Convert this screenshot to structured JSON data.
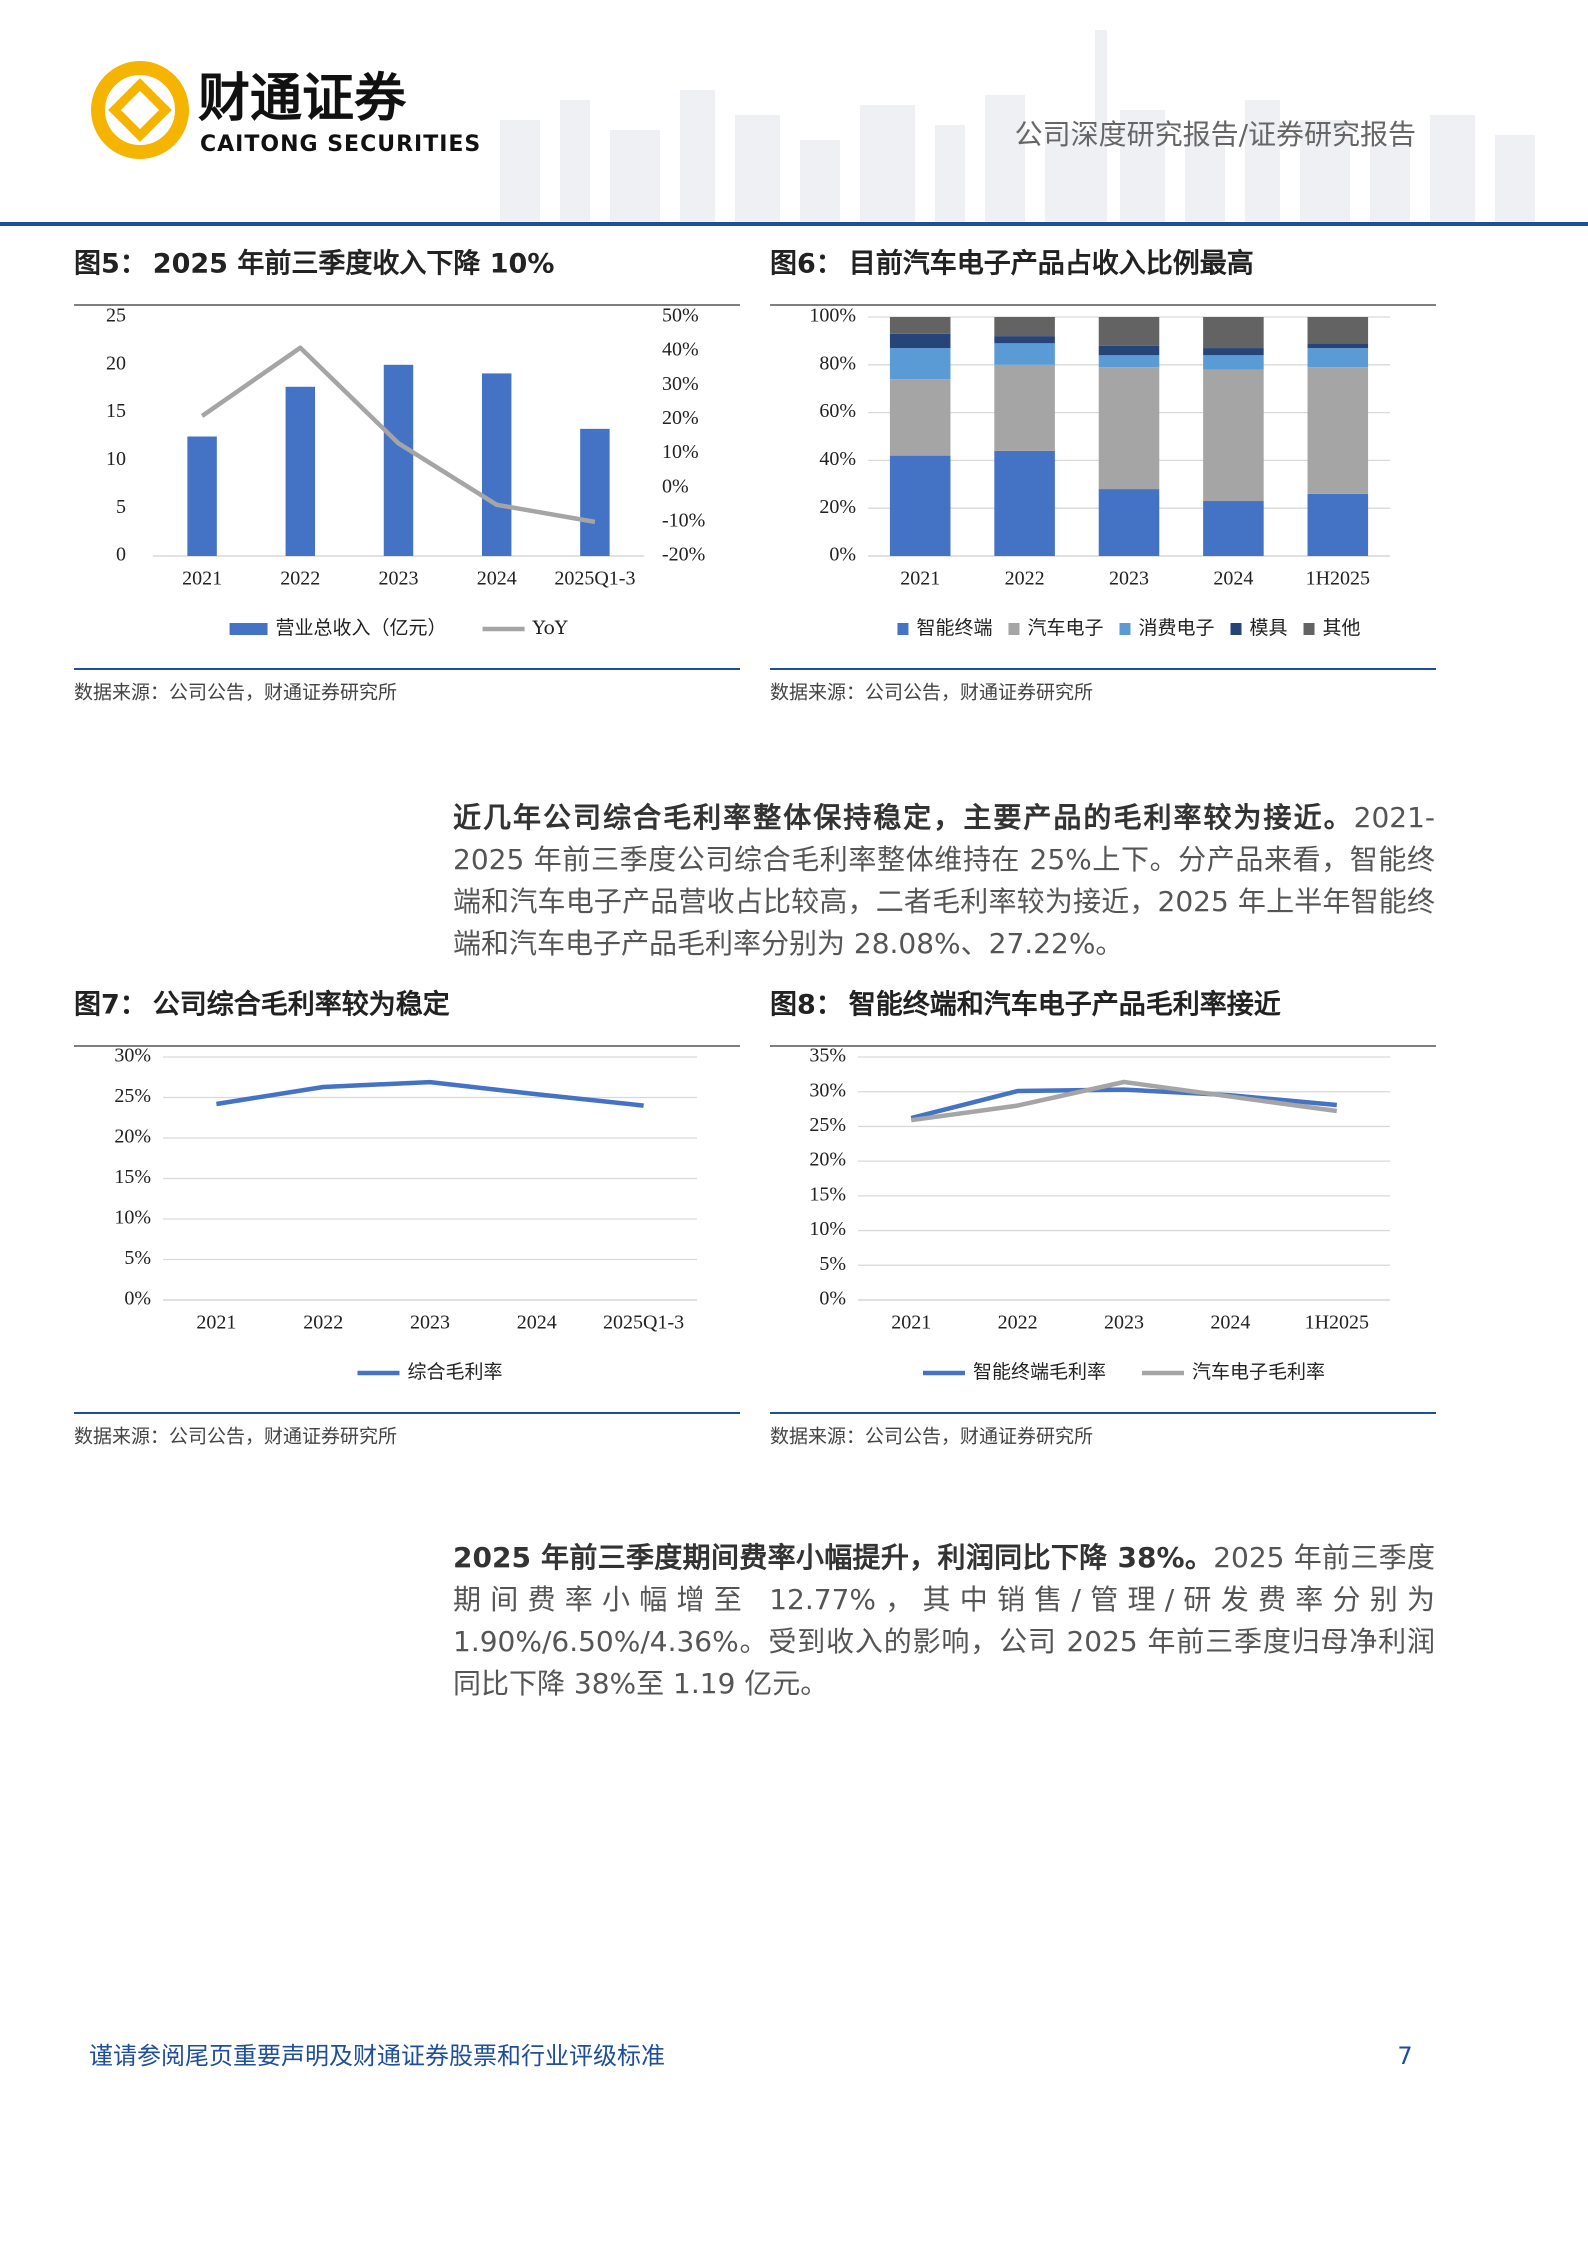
{
  "header": {
    "logo_cn": "财通证券",
    "logo_en": "CAITONG SECURITIES",
    "report_type": "公司深度研究报告/证券研究报告"
  },
  "chart_data": [
    {
      "type": "combo",
      "label": "图5：",
      "title": "2025 年前三季度收入下降 10%",
      "source": "数据来源：公司公告，财通证券研究所",
      "categories": [
        "2021",
        "2022",
        "2023",
        "2024",
        "2025Q1-3"
      ],
      "series": [
        {
          "name": "营业总收入（亿元）",
          "color": "#4472c4",
          "values": [
            12.5,
            17.7,
            20.0,
            19.1,
            13.3
          ]
        },
        {
          "name": "YoY",
          "color": "#a5a5a5",
          "axis": "y2",
          "values": [
            21,
            41,
            13,
            -5,
            -10
          ]
        }
      ],
      "ylim": [
        0,
        25
      ],
      "yticks": [
        0,
        5,
        10,
        15,
        20,
        25
      ],
      "y2lim": [
        -20,
        50
      ],
      "y2ticks": [
        {
          "value": -20,
          "label": "-20%"
        },
        {
          "value": -10,
          "label": "-10%"
        },
        {
          "value": 0,
          "label": "0%"
        },
        {
          "value": 10,
          "label": "10%"
        },
        {
          "value": 20,
          "label": "20%"
        },
        {
          "value": 30,
          "label": "30%"
        },
        {
          "value": 40,
          "label": "40%"
        },
        {
          "value": 50,
          "label": "50%"
        }
      ],
      "grid": false
    },
    {
      "type": "stacked",
      "label": "图6：",
      "title": "目前汽车电子产品占收入比例最高",
      "source": "数据来源：公司公告，财通证券研究所",
      "categories": [
        "2021",
        "2022",
        "2023",
        "2024",
        "1H2025"
      ],
      "series": [
        {
          "name": "智能终端",
          "color": "#4472c4",
          "values": [
            42,
            44,
            28,
            23,
            26
          ]
        },
        {
          "name": "汽车电子",
          "color": "#a5a5a5",
          "values": [
            32,
            36,
            51,
            55,
            53
          ]
        },
        {
          "name": "消费电子",
          "color": "#5b9bd5",
          "values": [
            13,
            9,
            5,
            6,
            8
          ]
        },
        {
          "name": "模具",
          "color": "#264478",
          "values": [
            6,
            3,
            4,
            3,
            2
          ]
        },
        {
          "name": "其他",
          "color": "#636363",
          "values": [
            7,
            8,
            12,
            13,
            11
          ]
        }
      ],
      "ylim": [
        0,
        100
      ],
      "yticks": [
        {
          "value": 0,
          "label": "0%"
        },
        {
          "value": 20,
          "label": "20%"
        },
        {
          "value": 40,
          "label": "40%"
        },
        {
          "value": 60,
          "label": "60%"
        },
        {
          "value": 80,
          "label": "80%"
        },
        {
          "value": 100,
          "label": "100%"
        }
      ],
      "grid": true
    },
    {
      "type": "line",
      "label": "图7：",
      "title": "公司综合毛利率较为稳定",
      "source": "数据来源：公司公告，财通证券研究所",
      "categories": [
        "2021",
        "2022",
        "2023",
        "2024",
        "2025Q1-3"
      ],
      "series": [
        {
          "name": "综合毛利率",
          "color": "#4472c4",
          "values": [
            24.2,
            26.3,
            26.9,
            25.4,
            24.0
          ]
        }
      ],
      "ylim": [
        0,
        30
      ],
      "yticks": [
        {
          "value": 0,
          "label": "0%"
        },
        {
          "value": 5,
          "label": "5%"
        },
        {
          "value": 10,
          "label": "10%"
        },
        {
          "value": 15,
          "label": "15%"
        },
        {
          "value": 20,
          "label": "20%"
        },
        {
          "value": 25,
          "label": "25%"
        },
        {
          "value": 30,
          "label": "30%"
        }
      ],
      "grid": true
    },
    {
      "type": "line",
      "label": "图8：",
      "title": "智能终端和汽车电子产品毛利率接近",
      "source": "数据来源：公司公告，财通证券研究所",
      "categories": [
        "2021",
        "2022",
        "2023",
        "2024",
        "1H2025"
      ],
      "series": [
        {
          "name": "智能终端毛利率",
          "color": "#4472c4",
          "values": [
            26.2,
            30.1,
            30.3,
            29.5,
            28.08
          ]
        },
        {
          "name": "汽车电子毛利率",
          "color": "#a5a5a5",
          "values": [
            25.9,
            28.0,
            31.4,
            29.3,
            27.22
          ]
        }
      ],
      "ylim": [
        0,
        35
      ],
      "yticks": [
        {
          "value": 0,
          "label": "0%"
        },
        {
          "value": 5,
          "label": "5%"
        },
        {
          "value": 10,
          "label": "10%"
        },
        {
          "value": 15,
          "label": "15%"
        },
        {
          "value": 20,
          "label": "20%"
        },
        {
          "value": 25,
          "label": "25%"
        },
        {
          "value": 30,
          "label": "30%"
        },
        {
          "value": 35,
          "label": "35%"
        }
      ],
      "grid": true
    }
  ],
  "paragraphs": [
    {
      "bold": "近几年公司综合毛利率整体保持稳定，主要产品的毛利率较为接近。",
      "text": "2021-2025 年前三季度公司综合毛利率整体维持在 25%上下。分产品来看，智能终端和汽车电子产品营收占比较高，二者毛利率较为接近，2025 年上半年智能终端和汽车电子产品毛利率分别为 28.08%、27.22%。"
    },
    {
      "bold": "2025 年前三季度期间费率小幅提升，利润同比下降 38%。",
      "text": "2025 年前三季度期间费率小幅增至 12.77%，其中销售/管理/研发费率分别为 1.90%/6.50%/4.36%。受到收入的影响，公司 2025 年前三季度归母净利润同比下降 38%至 1.19 亿元。"
    }
  ],
  "footer": {
    "disclaimer": "谨请参阅尾页重要声明及财通证券股票和行业评级标准",
    "page": 7
  }
}
